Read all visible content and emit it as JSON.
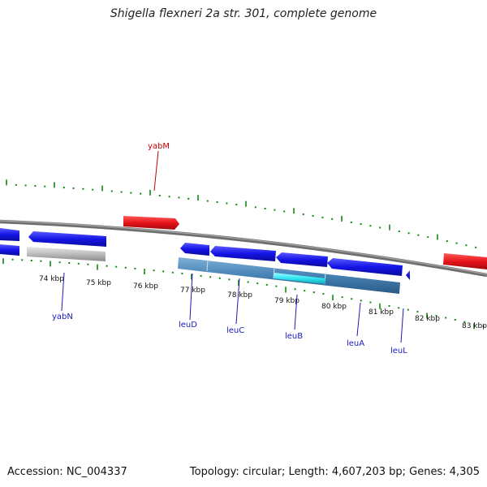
{
  "title": "Shigella flexneri 2a str. 301, complete genome",
  "footer": {
    "accession": "Accession: NC_004337",
    "summary": "Topology: circular; Length: 4,607,203 bp; Genes: 4,305"
  },
  "colors": {
    "forward_gene": "#e8141a",
    "reverse_gene": "#1414e6",
    "pseudogene": "#b8b8b8",
    "operon": "#4682b4",
    "highlight": "#2ee6f0",
    "backbone": "#808080",
    "tick": "#118811",
    "label_forward": "#c00000",
    "label_reverse": "#1a1ab8"
  },
  "axis_labels": [
    "74 kbp",
    "75 kbp",
    "76 kbp",
    "77 kbp",
    "78 kbp",
    "79 kbp",
    "80 kbp",
    "81 kbp",
    "82 kbp",
    "83 kbp"
  ],
  "genes": [
    {
      "name": "yabM",
      "strand": "forward"
    },
    {
      "name": "yabN",
      "strand": "reverse"
    },
    {
      "name": "leuD",
      "strand": "reverse"
    },
    {
      "name": "leuC",
      "strand": "reverse"
    },
    {
      "name": "leuB",
      "strand": "reverse"
    },
    {
      "name": "leuA",
      "strand": "reverse"
    },
    {
      "name": "leuL",
      "strand": "reverse"
    }
  ]
}
